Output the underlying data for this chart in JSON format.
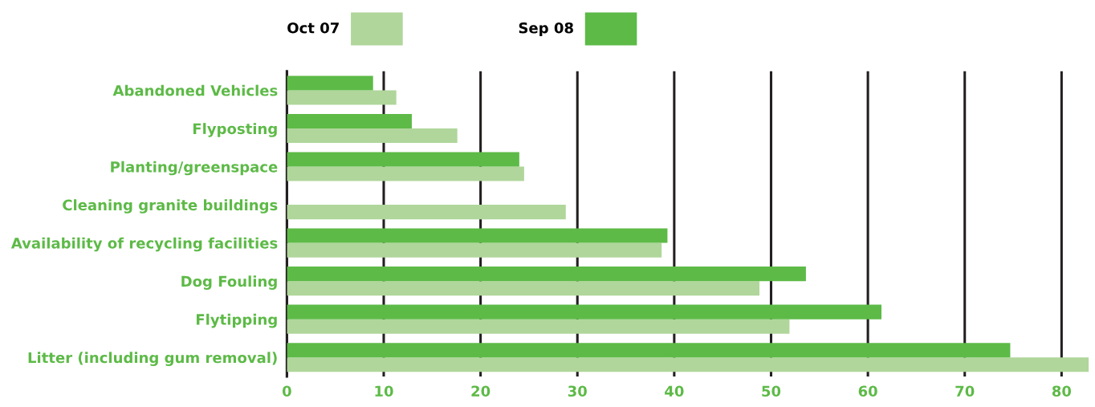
{
  "chart_data": {
    "type": "bar",
    "orientation": "horizontal",
    "categories": [
      "Abandoned Vehicles",
      "Flyposting",
      "Planting/greenspace",
      "Cleaning granite buildings",
      "Availability of recycling facilities",
      "Dog Fouling",
      "Flytipping",
      "Litter (including gum removal)"
    ],
    "series": [
      {
        "name": "Oct 07",
        "color": "#b0d69b",
        "values": [
          11.3,
          17.6,
          24.5,
          28.8,
          38.7,
          48.8,
          51.9,
          82.8
        ]
      },
      {
        "name": "Sep 08",
        "color": "#5dba47",
        "values": [
          8.9,
          12.9,
          24.0,
          null,
          39.3,
          53.6,
          61.4,
          74.7
        ]
      }
    ],
    "xlim": [
      0,
      83
    ],
    "xticks": [
      0,
      10,
      20,
      30,
      40,
      50,
      60,
      70,
      80
    ],
    "grid": "x",
    "legend": "top left"
  }
}
